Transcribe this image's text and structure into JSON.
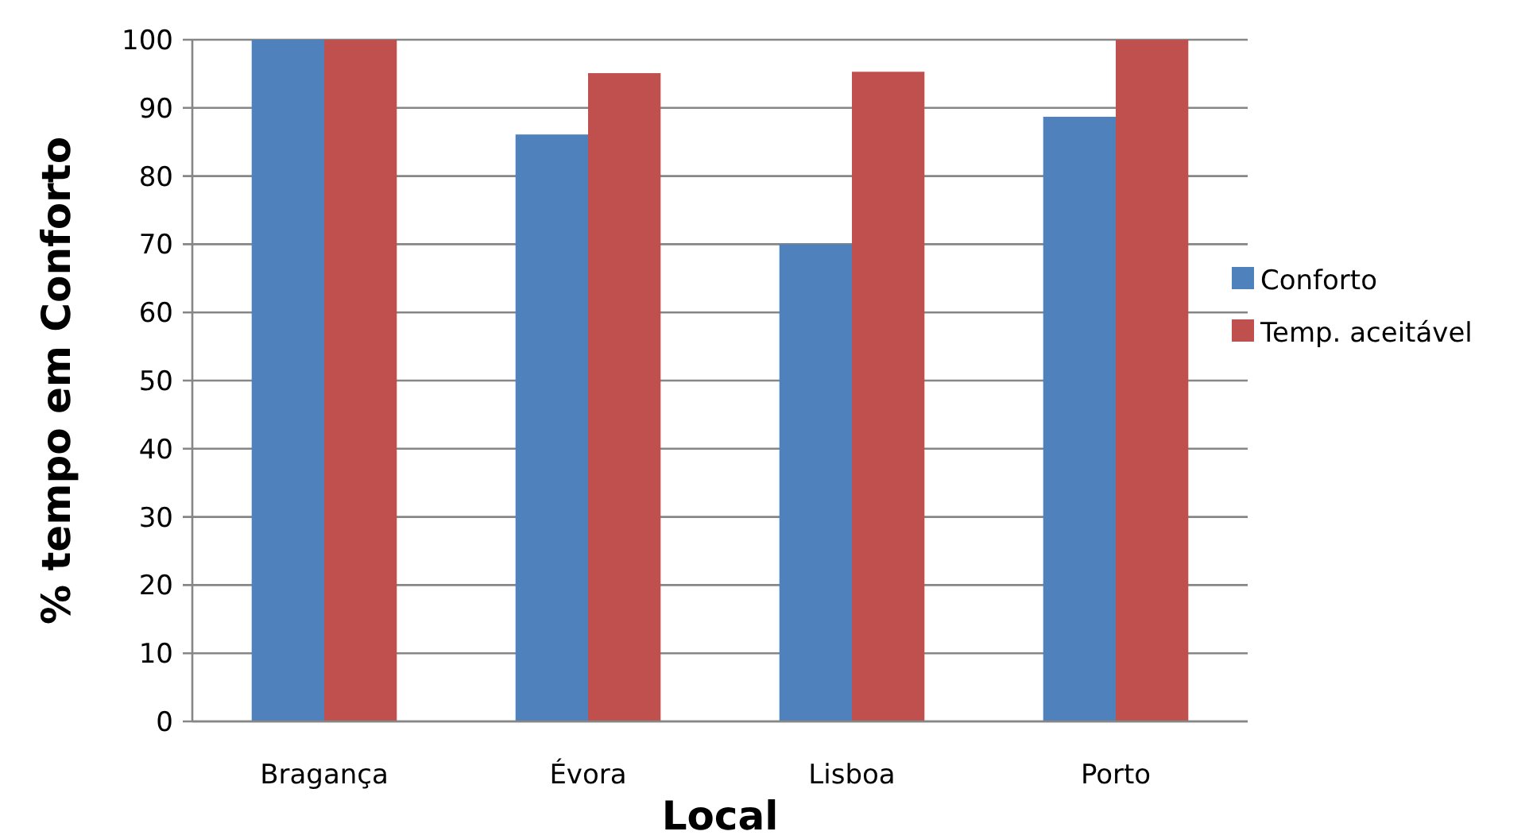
{
  "chart_data": {
    "type": "bar",
    "xlabel": "Local",
    "ylabel": "% tempo em Conforto",
    "categories": [
      "Bragança",
      "Évora",
      "Lisboa",
      "Porto"
    ],
    "series": [
      {
        "name": "Conforto",
        "color": "#4f81bd",
        "values": [
          100,
          86.1,
          70,
          88.7
        ]
      },
      {
        "name": "Temp. aceitável",
        "color": "#c0504d",
        "values": [
          100,
          95.1,
          95.3,
          100
        ]
      }
    ],
    "ylim": [
      0,
      100
    ],
    "yticks": [
      0,
      10,
      20,
      30,
      40,
      50,
      60,
      70,
      80,
      90,
      100
    ],
    "grid": "y",
    "legend": "right"
  }
}
